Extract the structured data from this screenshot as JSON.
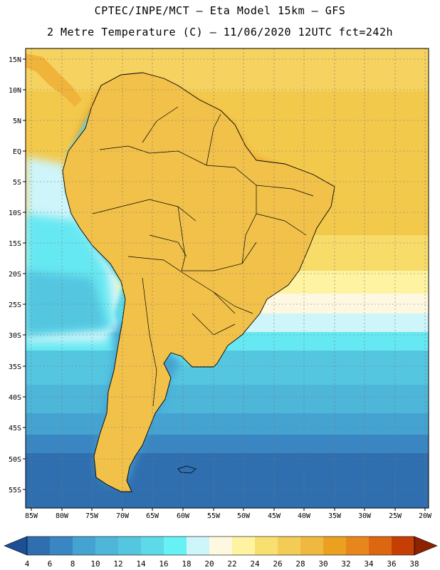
{
  "header": {
    "line1": "CPTEC/INPE/MCT –  Eta Model 15km – GFS",
    "line2": "2 Metre Temperature (C) – 11/06/2020 12UTC fct=242h"
  },
  "map": {
    "lat_labels": [
      "15N",
      "10N",
      "5N",
      "EQ",
      "5S",
      "10S",
      "15S",
      "20S",
      "25S",
      "30S",
      "35S",
      "40S",
      "45S",
      "50S",
      "55S"
    ],
    "lon_labels": [
      "85W",
      "80W",
      "75W",
      "70W",
      "65W",
      "60W",
      "55W",
      "50W",
      "45W",
      "40W",
      "35W",
      "30W",
      "25W",
      "20W"
    ]
  },
  "legend": {
    "values": [
      "4",
      "6",
      "8",
      "10",
      "12",
      "14",
      "16",
      "18",
      "20",
      "22",
      "24",
      "26",
      "28",
      "30",
      "32",
      "34",
      "36",
      "38"
    ],
    "colors": [
      "#2f6fb0",
      "#3a86c2",
      "#45a3d1",
      "#4db6d9",
      "#55c6e0",
      "#5dd9e8",
      "#66f2f5",
      "#cdf5fa",
      "#fff8e0",
      "#fdf3a0",
      "#f8e070",
      "#f3cc55",
      "#efb940",
      "#eba020",
      "#e7861a",
      "#dd6610",
      "#c53f05",
      "#a62b04"
    ],
    "out_low_color": "#1c4f96",
    "out_high_color": "#8c2200"
  },
  "field_colors": {
    "ocean_south": "#2b64ab",
    "ocean_mid": "#4aaed3",
    "ocean_north": "#f3c94c",
    "land_hot": "#d56a18"
  }
}
